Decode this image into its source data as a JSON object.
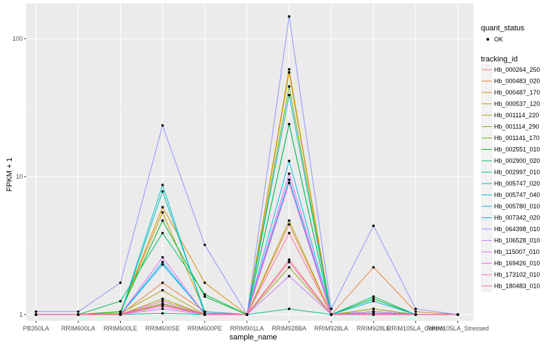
{
  "chart_data": {
    "type": "line",
    "xlabel": "sample_name",
    "ylabel": "FPKM + 1",
    "yscale": "log",
    "ylim": [
      0.9,
      180
    ],
    "yticks": [
      1,
      10,
      100
    ],
    "ytick_labels": [
      "1",
      "10",
      "100"
    ],
    "grid": true,
    "legend_position": "right",
    "categories": [
      "PB350LA",
      "RRIM600LA",
      "RRIM600LE",
      "RRIM600SE",
      "RRIM600PE",
      "RRIM901LA",
      "RRIM928BA",
      "RRIM928LA",
      "RRIM928LE",
      "RRIM105LA_Control",
      "RRIM105LA_Stressed"
    ],
    "point_legend": {
      "title": "quant_status",
      "label": "OK"
    },
    "series_legend_title": "tracking_id",
    "series": [
      {
        "name": "Hb_000264_250",
        "color": "#F8766D",
        "values": [
          1,
          1,
          1,
          1.18,
          1,
          1,
          2.5,
          1,
          1.05,
          1,
          1
        ]
      },
      {
        "name": "Hb_000483_020",
        "color": "#EC8239",
        "values": [
          1,
          1,
          1,
          1.7,
          1.05,
          1,
          4.5,
          1,
          2.2,
          1.05,
          1
        ]
      },
      {
        "name": "Hb_000487_170",
        "color": "#DB8E00",
        "values": [
          1,
          1,
          1.05,
          6,
          1.7,
          1,
          60,
          1,
          1.1,
          1,
          1
        ]
      },
      {
        "name": "Hb_000537_120",
        "color": "#C79800",
        "values": [
          1,
          1,
          1.05,
          5.5,
          1.05,
          1,
          57,
          1,
          1.05,
          1,
          1
        ]
      },
      {
        "name": "Hb_001114_220",
        "color": "#AEA200",
        "values": [
          1,
          1,
          1.02,
          1.5,
          1,
          1,
          4.8,
          1,
          1.05,
          1,
          1
        ]
      },
      {
        "name": "Hb_001114_290",
        "color": "#8FAA00",
        "values": [
          1,
          1,
          1,
          1.3,
          1,
          1,
          2.2,
          1,
          1.1,
          1,
          1
        ]
      },
      {
        "name": "Hb_001141_170",
        "color": "#64B200",
        "values": [
          1,
          1,
          1,
          1.2,
          1,
          1,
          45,
          1,
          1.05,
          1,
          1
        ]
      },
      {
        "name": "Hb_002551_010",
        "color": "#00B81B",
        "values": [
          1,
          1,
          1.05,
          4.8,
          1.35,
          1,
          24,
          1,
          1.3,
          1,
          1
        ]
      },
      {
        "name": "Hb_002900_020",
        "color": "#00BD5C",
        "values": [
          1,
          1,
          1.25,
          3.9,
          1.4,
          1,
          24,
          1,
          1.35,
          1,
          1
        ]
      },
      {
        "name": "Hb_002997_010",
        "color": "#00C08E",
        "values": [
          1,
          1,
          1,
          1.02,
          1,
          1,
          1.1,
          1,
          1,
          1,
          1
        ]
      },
      {
        "name": "Hb_005747_020",
        "color": "#00C1B2",
        "values": [
          1,
          1,
          1,
          7.8,
          1.05,
          1,
          9,
          1,
          1.02,
          1,
          1
        ]
      },
      {
        "name": "Hb_005747_040",
        "color": "#00BFD0",
        "values": [
          1,
          1,
          1,
          8.7,
          1,
          1,
          39,
          1,
          1.05,
          1,
          1
        ]
      },
      {
        "name": "Hb_005780_010",
        "color": "#00B8E7",
        "values": [
          1,
          1,
          1,
          2.4,
          1,
          1,
          13,
          1,
          1.25,
          1,
          1
        ]
      },
      {
        "name": "Hb_007342_020",
        "color": "#00ACFC",
        "values": [
          1,
          1,
          1,
          2.3,
          1.02,
          1,
          9.5,
          1,
          1.05,
          1,
          1
        ]
      },
      {
        "name": "Hb_064398_010",
        "color": "#8B93FF",
        "values": [
          1.05,
          1.05,
          1.7,
          23.5,
          3.2,
          1,
          145,
          1.1,
          4.4,
          1.1,
          1
        ]
      },
      {
        "name": "Hb_106528_010",
        "color": "#C77CFF",
        "values": [
          1,
          1,
          1,
          1.1,
          1,
          1,
          1.9,
          1,
          1,
          1,
          1
        ]
      },
      {
        "name": "Hb_115007_010",
        "color": "#E76BF3",
        "values": [
          1,
          1,
          1,
          2.6,
          1,
          1,
          10.5,
          1,
          1.05,
          1,
          1
        ]
      },
      {
        "name": "Hb_169426_010",
        "color": "#FA62DB",
        "values": [
          1,
          1,
          1,
          1.15,
          1,
          1,
          9,
          1,
          1,
          1,
          1
        ]
      },
      {
        "name": "Hb_173102_010",
        "color": "#FF62BC",
        "values": [
          1,
          1,
          1,
          1.25,
          1,
          1,
          2.4,
          1,
          1,
          1,
          1
        ]
      },
      {
        "name": "Hb_180483_010",
        "color": "#FF6C91",
        "values": [
          1,
          1,
          1,
          1.18,
          1,
          1,
          3.9,
          1,
          1,
          1,
          1
        ]
      }
    ]
  }
}
